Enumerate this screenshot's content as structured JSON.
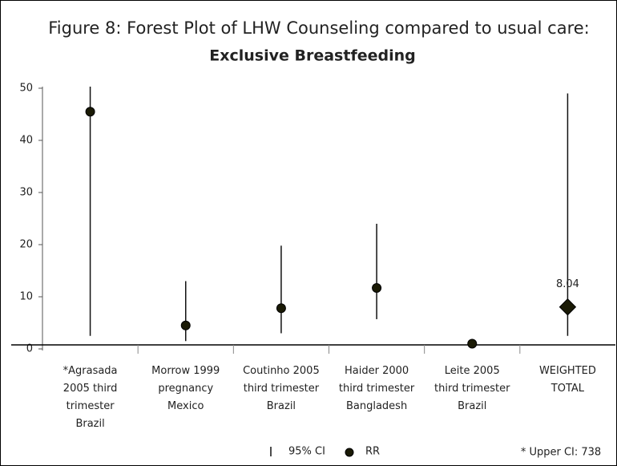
{
  "chart_data": {
    "type": "forest",
    "title": "Figure 8: Forest Plot of LHW Counseling compared to usual care:",
    "subtitle": "Exclusive Breastfeeding",
    "categories": [
      "*Agrasada\n2005   third\ntrimester\nBrazil",
      "Morrow 1999\npregnancy\nMexico",
      "Coutinho 2005\nthird trimester\nBrazil",
      "Haider 2000\nthird trimester\nBangladesh",
      "Leite 2005\nthird trimester\nBrazil",
      "WEIGHTED\nTOTAL"
    ],
    "series": [
      {
        "name": "RR",
        "color": "#1a1a05",
        "values": [
          45.5,
          4.5,
          7.8,
          11.7,
          1.0,
          8.04
        ],
        "value_labels": [
          null,
          null,
          null,
          null,
          null,
          "8.04"
        ]
      }
    ],
    "ci": {
      "name": "95% CI",
      "color": "#111111",
      "lower": [
        2.5,
        1.5,
        3.0,
        5.7,
        null,
        2.5
      ],
      "upper": [
        738,
        13,
        19.8,
        24,
        null,
        49
      ]
    },
    "annotation": "* Upper CI: 738",
    "ylim": [
      0,
      50
    ],
    "yticks": [
      0,
      10,
      20,
      30,
      40,
      50
    ],
    "grid": false
  }
}
